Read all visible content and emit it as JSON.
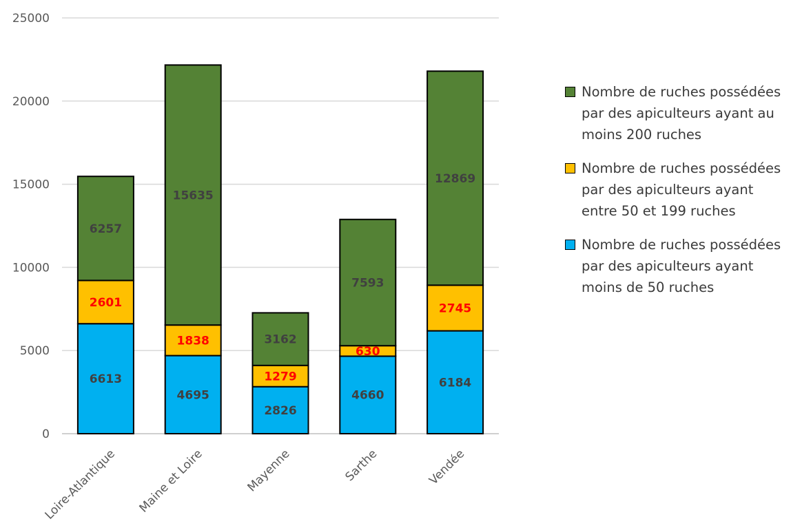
{
  "chart_data": {
    "type": "bar",
    "stacked": true,
    "categories": [
      "Loire-Atlantique",
      "Maine et Loire",
      "Mayenne",
      "Sarthe",
      "Vendée"
    ],
    "series": [
      {
        "name": "Nombre de ruches possédées par des apiculteurs ayant moins de 50 ruches",
        "color": "#00B0F0",
        "label_color": "#404040",
        "values": [
          6613,
          4695,
          2826,
          4660,
          6184
        ]
      },
      {
        "name": "Nombre de ruches possédées par des apiculteurs ayant entre 50 et 199 ruches",
        "color": "#FFC000",
        "label_color": "#FF0000",
        "values": [
          2601,
          1838,
          1279,
          630,
          2745
        ]
      },
      {
        "name": "Nombre de ruches possédées par des apiculteurs ayant au moins 200 ruches",
        "color": "#548235",
        "label_color": "#404040",
        "values": [
          6257,
          15635,
          3162,
          7593,
          12869
        ]
      }
    ],
    "ylim": [
      0,
      25000
    ],
    "yticks": [
      0,
      5000,
      10000,
      15000,
      20000,
      25000
    ],
    "grid": true,
    "legend_position": "right"
  }
}
